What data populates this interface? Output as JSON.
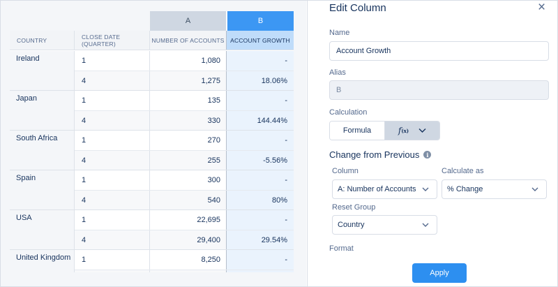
{
  "table": {
    "col_letters": [
      "A",
      "B"
    ],
    "headers": [
      "COUNTRY",
      "CLOSE DATE (QUARTER)",
      "NUMBER OF ACCOUNTS",
      "ACCOUNT GROWTH"
    ],
    "groups": [
      {
        "country": "Ireland",
        "rows": [
          {
            "q": "1",
            "accounts": "1,080",
            "growth": "-"
          },
          {
            "q": "4",
            "accounts": "1,275",
            "growth": "18.06%"
          }
        ]
      },
      {
        "country": "Japan",
        "rows": [
          {
            "q": "1",
            "accounts": "135",
            "growth": "-"
          },
          {
            "q": "4",
            "accounts": "330",
            "growth": "144.44%"
          }
        ]
      },
      {
        "country": "South Africa",
        "rows": [
          {
            "q": "1",
            "accounts": "270",
            "growth": "-"
          },
          {
            "q": "4",
            "accounts": "255",
            "growth": "-5.56%"
          }
        ]
      },
      {
        "country": "Spain",
        "rows": [
          {
            "q": "1",
            "accounts": "300",
            "growth": "-"
          },
          {
            "q": "4",
            "accounts": "540",
            "growth": "80%"
          }
        ]
      },
      {
        "country": "USA",
        "rows": [
          {
            "q": "1",
            "accounts": "22,695",
            "growth": "-"
          },
          {
            "q": "4",
            "accounts": "29,400",
            "growth": "29.54%"
          }
        ]
      },
      {
        "country": "United Kingdom",
        "rows": [
          {
            "q": "1",
            "accounts": "8,250",
            "growth": "-"
          },
          {
            "q": "",
            "accounts": "",
            "growth": ""
          }
        ]
      }
    ]
  },
  "panel": {
    "title": "Edit Column",
    "close_icon": "×",
    "name_label": "Name",
    "name_value": "Account Growth",
    "alias_label": "Alias",
    "alias_value": "B",
    "calc_label": "Calculation",
    "formula_label": "Formula",
    "fx_label": "f",
    "fx_sub": "(x)",
    "section_title": "Change from Previous",
    "info_icon": "i",
    "column_label": "Column",
    "column_value": "A: Number of Accounts",
    "calc_as_label": "Calculate as",
    "calc_as_value": "% Change",
    "reset_label": "Reset Group",
    "reset_value": "Country",
    "format_label": "Format",
    "apply_label": "Apply"
  },
  "colors": {
    "accent": "#2d8ff0",
    "selected_col": "#3c97f3",
    "text": "#16325c"
  }
}
